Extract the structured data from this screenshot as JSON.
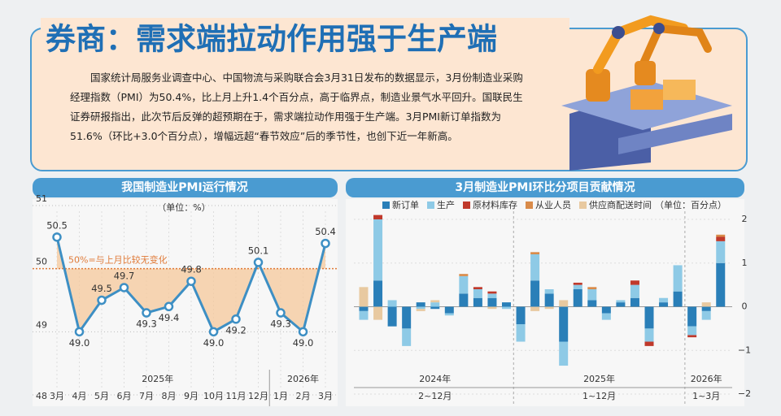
{
  "header": {
    "title": "券商：需求端拉动作用强于生产端",
    "body": "国家统计局服务业调查中心、中国物流与采购联合会3月31日发布的数据显示，3月份制造业采购经理指数（PMI）为50.4%，比上月上升1.4个百分点，高于临界点，制造业景气水平回升。国联民生证券研报指出，此次节后反弹的超预期在于，需求端拉动作用强于生产端。3月PMI新订单指数为51.6%（环比+3.0个百分点），增幅远超“春节效应”后的季节性，也创下近一年新高。"
  },
  "chart_data": [
    {
      "type": "line",
      "title": "我国制造业PMI运行情况",
      "subtitle": "（单位：%）",
      "categories": [
        "3月",
        "4月",
        "5月",
        "6月",
        "7月",
        "8月",
        "9月",
        "10月",
        "11月",
        "12月",
        "1月",
        "2月",
        "3月"
      ],
      "years": [
        "2025年",
        "2026年"
      ],
      "series": [
        {
          "color": "#3d8fc4",
          "values": [
            50.5,
            49.0,
            49.5,
            49.7,
            49.3,
            49.4,
            49.8,
            49.0,
            49.2,
            50.1,
            49.3,
            49.0,
            50.4
          ],
          "value_labels": [
            "50.5",
            "49.0",
            "49.5",
            "49.7",
            "49.3",
            "49.4",
            "49.8",
            "49.0",
            "49.2",
            "50.1",
            "49.3",
            "49.0",
            "50.4"
          ]
        }
      ],
      "ylim": [
        48,
        51
      ],
      "yticks": [
        48,
        49,
        50,
        51
      ],
      "reference": {
        "value": 50,
        "label": "50%=与上月比较无变化",
        "color": "#e07b39"
      },
      "area_color": "#f6c89b"
    },
    {
      "type": "bar",
      "stacked": true,
      "title": "3月制造业PMI环比分项目贡献情况",
      "unit": "（单位：百分点）",
      "categories": [
        null,
        null,
        null,
        null,
        null,
        null,
        null,
        null,
        null,
        null,
        null,
        null,
        null,
        null,
        null,
        null,
        null,
        null,
        null,
        null,
        null,
        null,
        null,
        null,
        null,
        null
      ],
      "groups": [
        {
          "year": "2024年",
          "period": "2~12月"
        },
        {
          "year": "2025年",
          "period": "1~12月"
        },
        {
          "year": "2026年",
          "period": "1~3月"
        }
      ],
      "series": [
        {
          "name": "新订单",
          "color": "#2a7fb8",
          "values": [
            -0.1,
            0.6,
            -0.45,
            -0.5,
            0.1,
            -0.05,
            -0.15,
            0.3,
            0.2,
            0.2,
            0.1,
            -0.4,
            0.6,
            0.3,
            -0.8,
            0.4,
            0.15,
            -0.15,
            0.1,
            0.2,
            -0.5,
            0.1,
            0.35,
            -0.45,
            -0.1,
            1.0
          ]
        },
        {
          "name": "生产",
          "color": "#8ecae6",
          "values": [
            -0.2,
            1.4,
            0.15,
            -0.4,
            -0.05,
            0.1,
            -0.05,
            0.4,
            0.2,
            0.1,
            -0.05,
            -0.4,
            0.6,
            0.1,
            -0.55,
            0.1,
            0.25,
            -0.15,
            0.05,
            0.3,
            -0.3,
            0.1,
            0.6,
            -0.2,
            -0.2,
            0.5
          ]
        },
        {
          "name": "原材料库存",
          "color": "#c0392b",
          "values": [
            0,
            0.1,
            0,
            0,
            0,
            0,
            0,
            0,
            0.05,
            0.05,
            0,
            0,
            0,
            0,
            0,
            0.05,
            0,
            0,
            0,
            0.1,
            -0.1,
            0,
            0,
            -0.05,
            0,
            0.1
          ]
        },
        {
          "name": "从业人员",
          "color": "#d98b4a",
          "values": [
            0,
            0,
            0,
            0,
            0,
            0,
            0,
            0.05,
            0,
            0,
            0,
            0,
            0.05,
            0,
            0,
            0,
            0.05,
            0,
            0,
            0,
            0,
            0,
            0,
            0,
            0,
            0.05
          ]
        },
        {
          "name": "供应商配送时间",
          "color": "#e8c9a0",
          "values": [
            0.45,
            -0.3,
            0,
            0,
            -0.05,
            0.05,
            0,
            0,
            0,
            -0.05,
            0,
            0,
            -0.1,
            -0.05,
            0.15,
            0,
            0,
            0,
            0,
            0,
            0,
            0,
            0,
            0,
            0.1,
            0
          ]
        }
      ],
      "ylim": [
        -2,
        2
      ],
      "yticks": [
        {
          "value": -2,
          "label": "−2"
        },
        {
          "value": -1,
          "label": "−1"
        },
        0,
        1,
        2
      ]
    }
  ]
}
